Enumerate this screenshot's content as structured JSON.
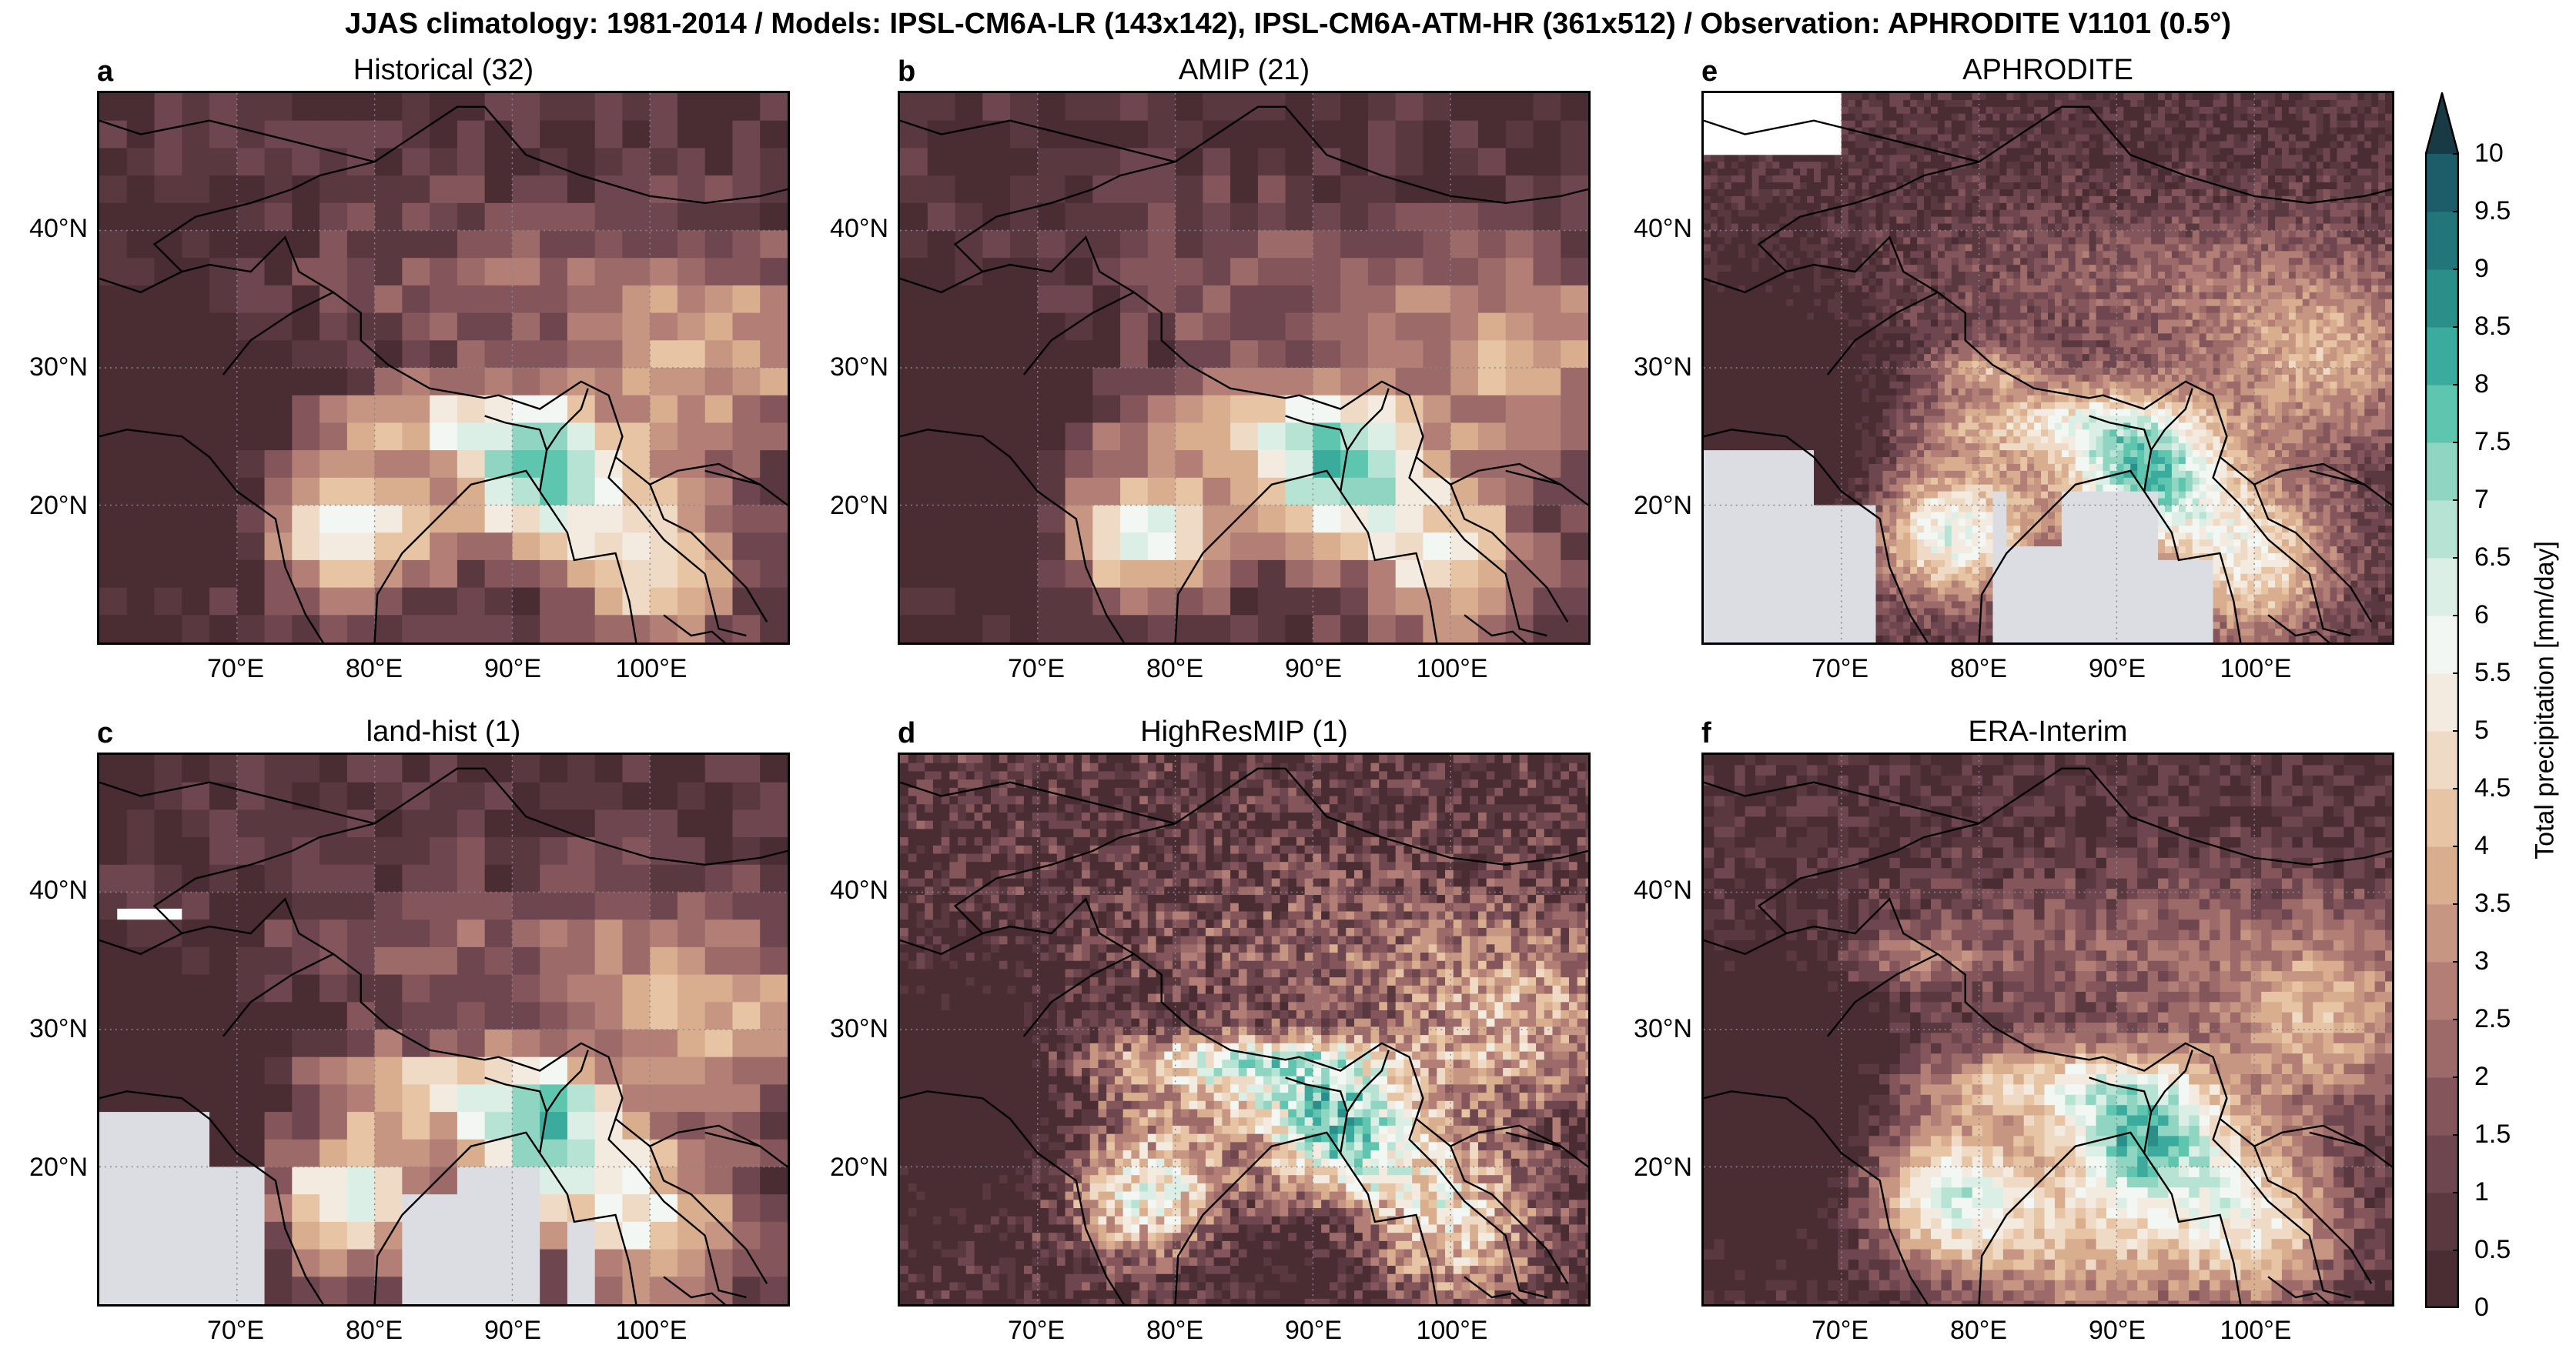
{
  "suptitle": "JJAS climatology: 1981-2014 / Models: IPSL-CM6A-LR (143x142), IPSL-CM6A-ATM-HR (361x512) / Observation: APHRODITE V1101 (0.5°)",
  "panels": [
    {
      "letter": "a",
      "title": "Historical (32)",
      "style": "coarse-model"
    },
    {
      "letter": "b",
      "title": "AMIP (21)",
      "style": "coarse-model"
    },
    {
      "letter": "e",
      "title": "APHRODITE",
      "style": "observation"
    },
    {
      "letter": "c",
      "title": "land-hist (1)",
      "style": "land-only"
    },
    {
      "letter": "d",
      "title": "HighResMIP (1)",
      "style": "high-res"
    },
    {
      "letter": "f",
      "title": "ERA-Interim",
      "style": "reanalysis"
    }
  ],
  "axes": {
    "lat_ticks": [
      "40°N",
      "30°N",
      "20°N"
    ],
    "lon_ticks": [
      "70°E",
      "80°E",
      "90°E",
      "100°E"
    ],
    "lat_values": [
      40,
      30,
      20
    ],
    "lon_values": [
      70,
      80,
      90,
      100
    ],
    "lon_range": [
      60,
      110
    ],
    "lat_range": [
      10,
      50
    ]
  },
  "colorbar": {
    "title": "Total precipitation [mm/day]",
    "ticks": [
      "0",
      "0.5",
      "1",
      "1.5",
      "2",
      "2.5",
      "3",
      "3.5",
      "4",
      "4.5",
      "5",
      "5.5",
      "6",
      "6.5",
      "7",
      "7.5",
      "8",
      "8.5",
      "9",
      "9.5",
      "10"
    ],
    "extend": "max",
    "colors": [
      "#4a2c33",
      "#5a3840",
      "#6e4650",
      "#84565c",
      "#9c6a68",
      "#b27e76",
      "#c69682",
      "#d8ae8e",
      "#e6c4a4",
      "#efdac6",
      "#f4ebe0",
      "#f3f7f3",
      "#dcefe7",
      "#b7e3d4",
      "#8fd5c2",
      "#5ec5af",
      "#3aab9c",
      "#2a8f88",
      "#22767a",
      "#1d5d69",
      "#1a4955"
    ],
    "extend_color": "#173a44"
  },
  "map_colors": {
    "no_data": "#dcdde2",
    "missing": "#ffffff",
    "border": "#000000",
    "grid": "#888888"
  }
}
